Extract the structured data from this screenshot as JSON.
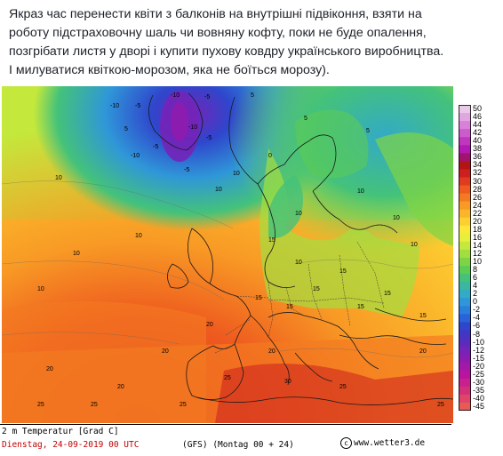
{
  "post": {
    "line1": "Якраз час перенести квіти з балконів на внутрішні підвіконня, взяти на",
    "line2": "роботу підстраховочну шаль чи вовняну кофту, поки не буде опалення,",
    "line3": "позгрібати листя у дворі і купити пухову ковдру українського виробництва.",
    "line4": "І милуватися квіткою-морозом, яка не боїться морозу)."
  },
  "map": {
    "variable": "2 m Temperatur [Grad C]",
    "date_line": "Dienstag, 24-09-2019  00 UTC",
    "run_line": "(GFS)  (Montag 00 + 24)",
    "credit": "www.wetter3.de",
    "copyright_symbol": "c",
    "colorbar_labels": [
      "50",
      "46",
      "44",
      "42",
      "40",
      "38",
      "36",
      "34",
      "32",
      "30",
      "28",
      "26",
      "24",
      "22",
      "20",
      "18",
      "16",
      "14",
      "12",
      "10",
      "8",
      "6",
      "4",
      "2",
      "0",
      "-2",
      "-4",
      "-6",
      "-8",
      "-10",
      "-12",
      "-15",
      "-20",
      "-25",
      "-30",
      "-35",
      "-40",
      "-45"
    ],
    "colorbar_colors": [
      "#e8c9e8",
      "#e0a6e0",
      "#d980d9",
      "#cc5ccc",
      "#bf36bf",
      "#b31ab3",
      "#a0146e",
      "#b31414",
      "#cc1f1f",
      "#e03b1f",
      "#ee5a1f",
      "#f47a21",
      "#f89a25",
      "#fbb52b",
      "#fdd031",
      "#fde738",
      "#e6ef3a",
      "#c4e83c",
      "#a2de40",
      "#7fd445",
      "#5ccc55",
      "#44c27a",
      "#3ab7a0",
      "#33aac6",
      "#2f97d8",
      "#2b7fdc",
      "#2a62d8",
      "#2f46cc",
      "#4236c4",
      "#5a2cbc",
      "#7424b8",
      "#8c1cb0",
      "#a418a8",
      "#b814a0",
      "#c8208e",
      "#d4307a",
      "#df4568",
      "#e85a56"
    ],
    "temperature_labels": [
      "-10",
      "-5",
      "-5",
      "-5",
      "-10",
      "-5",
      "-10",
      "-10",
      "-5",
      "0",
      "5",
      "5",
      "5",
      "5",
      "10",
      "10",
      "10",
      "10",
      "10",
      "10",
      "10",
      "10",
      "10",
      "10",
      "10",
      "15",
      "15",
      "15",
      "15",
      "15",
      "15",
      "15",
      "15",
      "20",
      "20",
      "20",
      "20",
      "20",
      "20",
      "25",
      "25",
      "25",
      "25",
      "30",
      "25",
      "25"
    ]
  }
}
